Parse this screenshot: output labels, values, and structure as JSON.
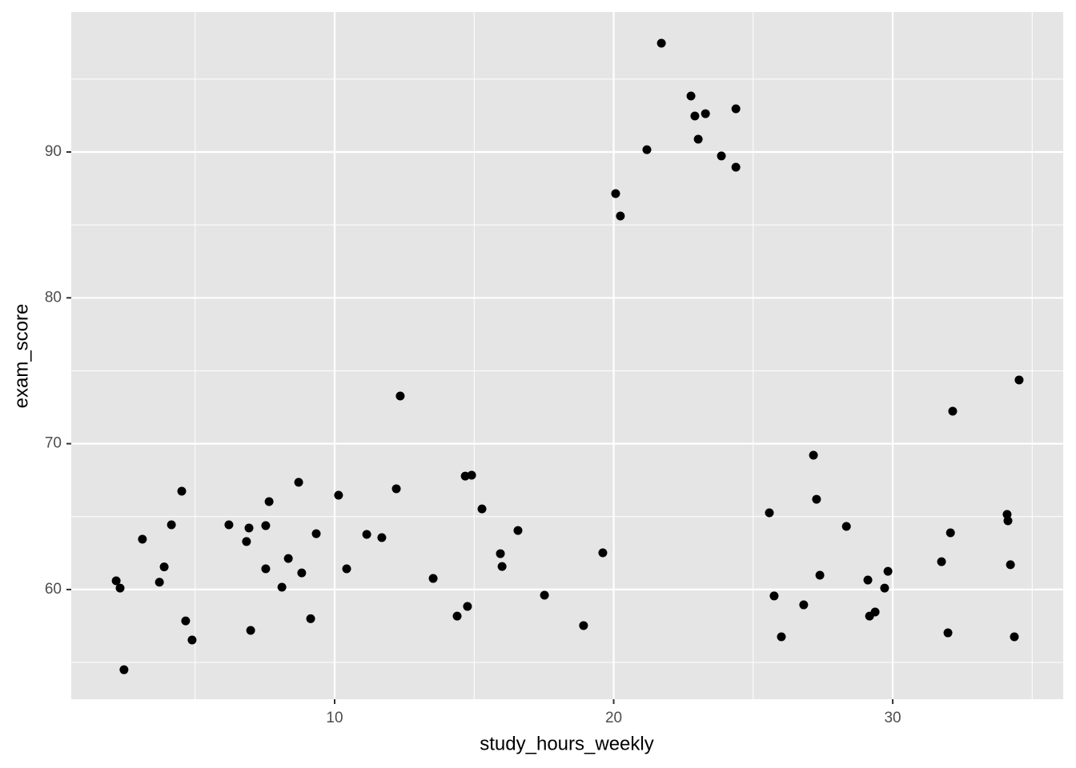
{
  "chart_data": {
    "type": "scatter",
    "x_label": "study_hours_weekly",
    "y_label": "exam_score",
    "xlim": [
      0.56,
      36.11
    ],
    "ylim": [
      52.48,
      99.6
    ],
    "xticks": [
      10,
      20,
      30
    ],
    "yticks": [
      60,
      70,
      80,
      90
    ],
    "minor_xticks": [
      5,
      15,
      25,
      35
    ],
    "minor_yticks": [
      55,
      65,
      75,
      85,
      95
    ],
    "grid": true,
    "panel_color": "#e5e5e5",
    "grid_color": "#ffffff",
    "series": [
      {
        "color": "#000000",
        "x": [
          2.17,
          2.31,
          2.45,
          3.11,
          3.72,
          3.89,
          4.15,
          4.52,
          4.66,
          4.89,
          6.21,
          6.84,
          6.93,
          6.99,
          7.53,
          7.53,
          7.65,
          8.11,
          8.34,
          8.71,
          8.82,
          9.14,
          9.34,
          10.14,
          10.43,
          11.15,
          11.69,
          12.21,
          12.35,
          13.53,
          14.39,
          14.68,
          14.76,
          14.91,
          15.28,
          15.94,
          16.0,
          16.57,
          17.52,
          18.92,
          19.61,
          20.07,
          20.24,
          21.19,
          21.71,
          22.77,
          22.91,
          23.03,
          23.29,
          23.86,
          24.38,
          24.38,
          25.58,
          25.75,
          26.01,
          26.81,
          27.16,
          27.27,
          27.39,
          28.34,
          29.11,
          29.17,
          29.37,
          29.71,
          29.83,
          31.75,
          31.98,
          32.07,
          32.15,
          34.1,
          34.13,
          34.22,
          34.36,
          34.53
        ],
        "values": [
          60.6,
          60.1,
          54.5,
          63.45,
          60.5,
          61.55,
          64.44,
          66.74,
          57.85,
          56.54,
          64.44,
          63.29,
          64.22,
          57.2,
          64.38,
          61.42,
          66.03,
          60.16,
          62.13,
          67.35,
          61.14,
          58.0,
          63.83,
          66.47,
          61.42,
          63.78,
          63.56,
          66.91,
          73.27,
          60.76,
          58.18,
          67.78,
          58.84,
          67.84,
          65.53,
          62.46,
          61.58,
          64.05,
          59.61,
          57.53,
          62.52,
          87.15,
          85.61,
          90.16,
          97.46,
          93.84,
          92.47,
          90.88,
          92.63,
          89.73,
          92.96,
          88.96,
          65.26,
          59.56,
          56.76,
          58.95,
          69.21,
          66.19,
          60.98,
          64.33,
          60.65,
          58.18,
          58.46,
          60.1,
          61.25,
          61.91,
          57.03,
          63.89,
          72.23,
          65.15,
          64.71,
          61.7,
          56.76,
          74.37
        ]
      }
    ]
  }
}
